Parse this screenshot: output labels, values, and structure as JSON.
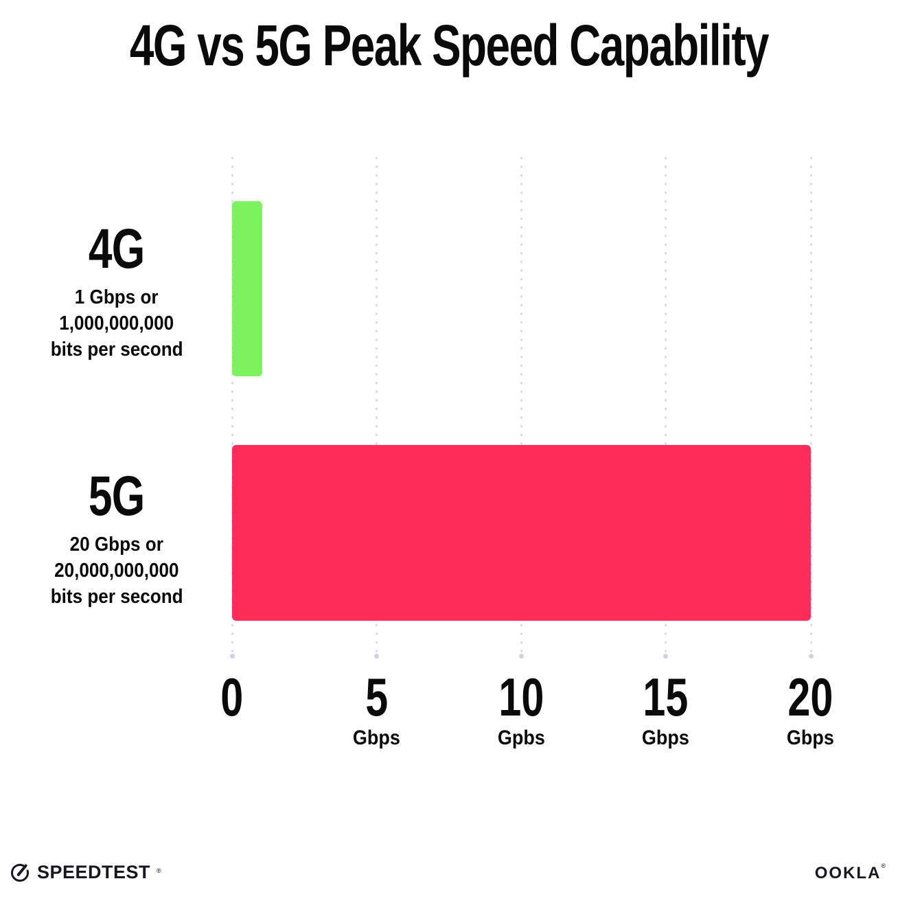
{
  "title": "4G vs 5G Peak Speed Capability",
  "chart_data": {
    "type": "bar",
    "orientation": "horizontal",
    "title": "4G vs 5G Peak Speed Capability",
    "categories": [
      "4G",
      "5G"
    ],
    "values": [
      1,
      20
    ],
    "value_unit": "Gbps",
    "xlim": [
      0,
      20
    ],
    "xlabel": "",
    "ylabel": "",
    "grid": "vertical-dotted",
    "legend": "none",
    "bar_colors": [
      "#7CF25F",
      "#FD2D5A"
    ],
    "category_descriptions": [
      [
        "1 Gbps or",
        "1,000,000,000",
        "bits per second"
      ],
      [
        "20 Gbps or",
        "20,000,000,000",
        "bits per second"
      ]
    ],
    "x_ticks": [
      {
        "value": "0",
        "unit": ""
      },
      {
        "value": "5",
        "unit": "Gbps"
      },
      {
        "value": "10",
        "unit": "Gpbs"
      },
      {
        "value": "15",
        "unit": "Gbps"
      },
      {
        "value": "20",
        "unit": "Gbps"
      }
    ]
  },
  "footer": {
    "speedtest_label": "SPEEDTEST",
    "speedtest_mark": "®",
    "ookla_label": "OOKLA",
    "ookla_mark": "®"
  },
  "colors": {
    "background": "#FFFFFF",
    "text": "#0A0A0A",
    "grid_dot": "#D9DBE8",
    "grid_end_dot": "#CED2E2",
    "bar_4g_green": "#7CF25F",
    "bar_5g_pink": "#FD2D5A"
  }
}
